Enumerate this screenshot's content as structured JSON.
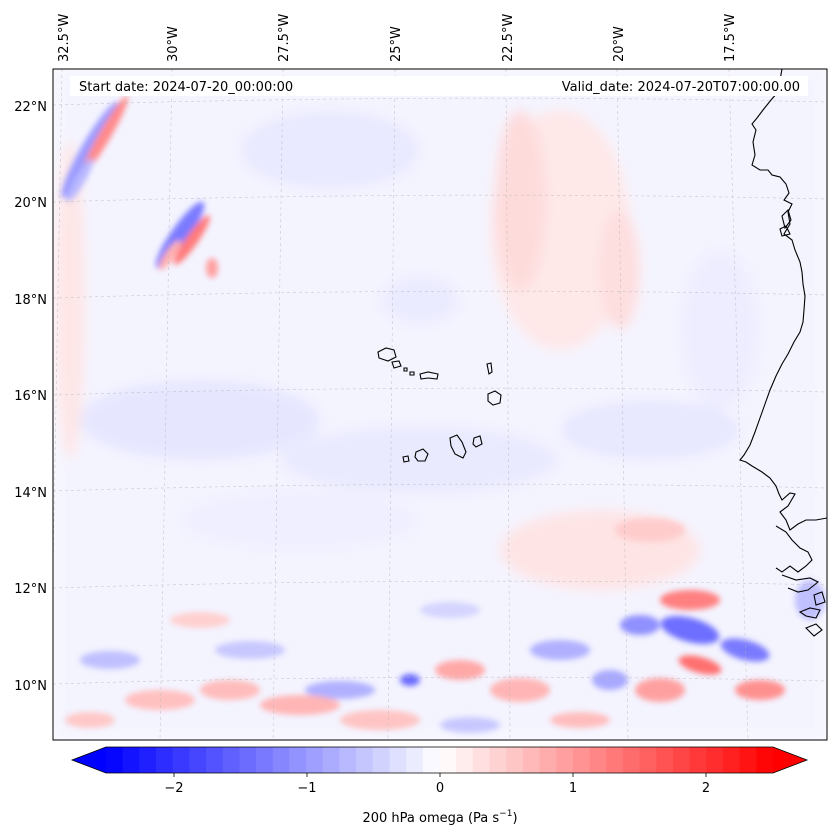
{
  "annotations": {
    "start_date": "Start date: 2024-07-20_00:00:00",
    "valid_date": "Valid_date: 2024-07-20T07:00:00.00"
  },
  "axes": {
    "lon_ticks": [
      "32.5°W",
      "30°W",
      "27.5°W",
      "25°W",
      "22.5°W",
      "20°W",
      "17.5°W"
    ],
    "lat_ticks": [
      "22°N",
      "20°N",
      "18°N",
      "16°N",
      "14°N",
      "12°N",
      "10°N"
    ]
  },
  "colorbar": {
    "label": "200 hPa omega (Pa s",
    "label_sup": "−1",
    "label_close": ")",
    "ticks": [
      "−2",
      "−1",
      "0",
      "1",
      "2"
    ],
    "range": [
      -2.75,
      2.75
    ],
    "colormap": "bwr",
    "extend": "both",
    "low_color": "#0000ff",
    "mid_color": "#ffffff",
    "high_color": "#ff0000"
  },
  "map": {
    "gridlines": true,
    "coastline_color": "#000000"
  }
}
